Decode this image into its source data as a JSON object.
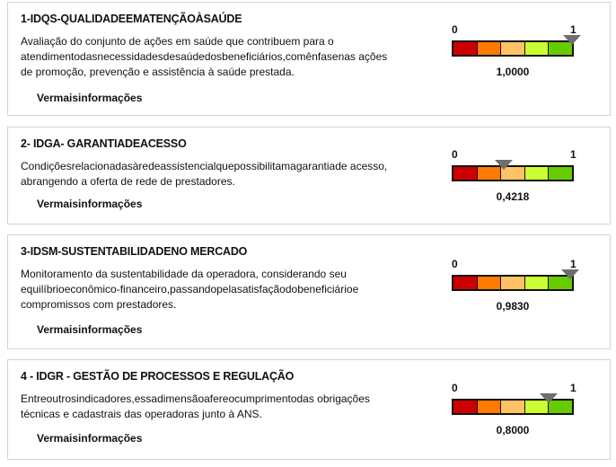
{
  "gauge": {
    "min_label": "0",
    "max_label": "1",
    "segment_colors": [
      "#cc0000",
      "#ff7a00",
      "#ffc266",
      "#ccff33",
      "#66cc00"
    ]
  },
  "indicators": [
    {
      "title": "1-IDQS-QUALIDADEEMATENÇÃOÀSAÚDE",
      "description": "Avaliação do conjunto de ações em saúde que contribuem para o atendimentodasnecessidadesdesaúdedosbeneficiários,comênfasenas ações de promoção, prevenção e assistência à saúde prestada.",
      "link": "Vermaisinformações",
      "value_label": "1,0000",
      "value": 1.0
    },
    {
      "title": "2- IDGA- GARANTIADEACESSO",
      "description": "Condiçõesrelacionadasàredeassistencialquepossibilitamagarantiade acesso, abrangendo a oferta de rede de prestadores.",
      "link": "Vermaisinformações",
      "value_label": "0,4218",
      "value": 0.4218
    },
    {
      "title": "3-IDSM-SUSTENTABILIDADENO MERCADO",
      "description": "Monitoramento da sustentabilidade da operadora, considerando seu equilíbrioeconômico-financeiro,passandopelasatisfaçãodobeneficiárioe compromissos com prestadores.",
      "link": "Vermaisinformações",
      "value_label": "0,9830",
      "value": 0.983
    },
    {
      "title": "4 - IDGR - GESTÃO DE PROCESSOS E REGULAÇÃO",
      "description": "Entreoutrosindicadores,essadimensãoafereocumprimentodas obrigações técnicas e cadastrais das operadoras junto à ANS.",
      "link": "Vermaisinformações",
      "value_label": "0,8000",
      "value": 0.8
    }
  ]
}
